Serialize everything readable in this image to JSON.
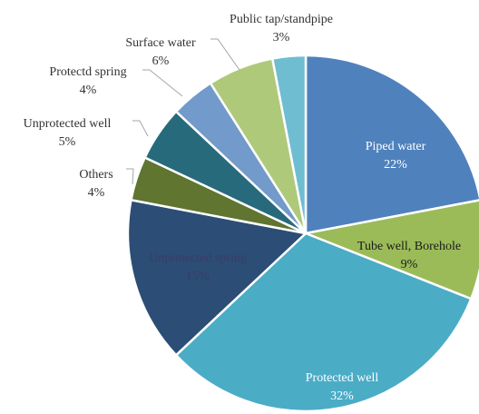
{
  "chart_data": {
    "type": "pie",
    "title": "",
    "slices": [
      {
        "label": "Piped water",
        "value": 22,
        "display": "22%",
        "color": "#4F81BD",
        "text_color": "#FFFFFF"
      },
      {
        "label": "Tube well, Borehole",
        "value": 9,
        "display": "9%",
        "color": "#9BBB59",
        "text_color": "#1A1A1A"
      },
      {
        "label": "Protected well",
        "value": 32,
        "display": "32%",
        "color": "#4BACC6",
        "text_color": "#FFFFFF"
      },
      {
        "label": "Unprotected spring",
        "value": 15,
        "display": "15%",
        "color": "#2C4D75",
        "text_color": "#3B3B6B"
      },
      {
        "label": "Others",
        "value": 4,
        "display": "4%",
        "color": "#5F7530",
        "text_color": "#333333"
      },
      {
        "label": "Unprotected well",
        "value": 5,
        "display": "5%",
        "color": "#276A7C",
        "text_color": "#333333"
      },
      {
        "label": "Protectd spring",
        "value": 4,
        "display": "4%",
        "color": "#729ACA",
        "text_color": "#333333"
      },
      {
        "label": "Surface water",
        "value": 6,
        "display": "6%",
        "color": "#AFC97A",
        "text_color": "#333333"
      },
      {
        "label": "Public tap/standpipe",
        "value": 3,
        "display": "3%",
        "color": "#6FBDD1",
        "text_color": "#333333"
      }
    ],
    "start_angle_deg": 0,
    "direction": "clockwise",
    "slice_border_color": "#FFFFFF"
  }
}
